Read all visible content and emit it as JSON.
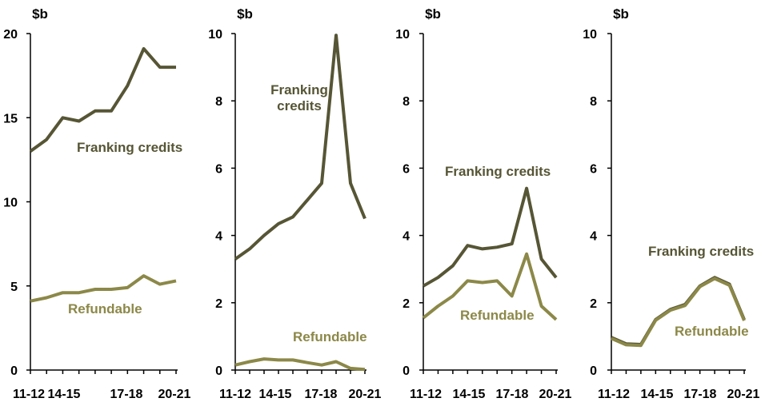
{
  "colors": {
    "franking": "#565535",
    "refundable": "#8c8848",
    "axis": "#000000"
  },
  "chart_data": [
    {
      "type": "line",
      "unit_label": "$b",
      "ylim": [
        0,
        20
      ],
      "yticks": [
        "0",
        "5",
        "10",
        "15",
        "20"
      ],
      "xticks": [
        "11-12",
        "14-15",
        "17-18",
        "20-21"
      ],
      "x": [
        "11-12",
        "12-13",
        "13-14",
        "14-15",
        "15-16",
        "16-17",
        "17-18",
        "18-19",
        "19-20",
        "20-21"
      ],
      "series": [
        {
          "name": "Franking credits",
          "color": "franking",
          "values": [
            13.0,
            13.7,
            15.0,
            14.8,
            15.4,
            15.4,
            16.9,
            19.1,
            18.0,
            18.0
          ]
        },
        {
          "name": "Refundable",
          "color": "refundable",
          "values": [
            4.1,
            4.3,
            4.6,
            4.6,
            4.8,
            4.8,
            4.9,
            5.6,
            5.1,
            5.3
          ]
        }
      ],
      "annotations": [
        "Franking credits",
        "Refundable"
      ]
    },
    {
      "type": "line",
      "unit_label": "$b",
      "ylim": [
        0,
        10
      ],
      "yticks": [
        "0",
        "2",
        "4",
        "6",
        "8",
        "10"
      ],
      "xticks": [
        "11-12",
        "14-15",
        "17-18",
        "20-21"
      ],
      "x": [
        "11-12",
        "12-13",
        "13-14",
        "14-15",
        "15-16",
        "16-17",
        "17-18",
        "18-19",
        "19-20",
        "20-21"
      ],
      "series": [
        {
          "name": "Franking credits",
          "color": "franking",
          "values": [
            3.3,
            3.6,
            4.0,
            4.35,
            4.55,
            5.05,
            5.55,
            9.95,
            5.55,
            4.5
          ]
        },
        {
          "name": "Refundable",
          "color": "refundable",
          "values": [
            0.15,
            0.25,
            0.33,
            0.3,
            0.3,
            0.22,
            0.15,
            0.25,
            0.05,
            0.02
          ]
        }
      ],
      "annotations": [
        "Franking\ncredits",
        "Refundable"
      ]
    },
    {
      "type": "line",
      "unit_label": "$b",
      "ylim": [
        0,
        10
      ],
      "yticks": [
        "0",
        "2",
        "4",
        "6",
        "8",
        "10"
      ],
      "xticks": [
        "11-12",
        "14-15",
        "17-18",
        "20-21"
      ],
      "x": [
        "11-12",
        "12-13",
        "13-14",
        "14-15",
        "15-16",
        "16-17",
        "17-18",
        "18-19",
        "19-20",
        "20-21"
      ],
      "series": [
        {
          "name": "Franking credits",
          "color": "franking",
          "values": [
            2.5,
            2.75,
            3.1,
            3.7,
            3.6,
            3.65,
            3.75,
            5.4,
            3.3,
            2.75
          ]
        },
        {
          "name": "Refundable",
          "color": "refundable",
          "values": [
            1.55,
            1.9,
            2.2,
            2.65,
            2.6,
            2.65,
            2.2,
            3.45,
            1.9,
            1.5
          ]
        }
      ],
      "annotations": [
        "Franking credits",
        "Refundable"
      ]
    },
    {
      "type": "line",
      "unit_label": "$b",
      "ylim": [
        0,
        10
      ],
      "yticks": [
        "0",
        "2",
        "4",
        "6",
        "8",
        "10"
      ],
      "xticks": [
        "11-12",
        "14-15",
        "17-18",
        "20-21"
      ],
      "x": [
        "11-12",
        "12-13",
        "13-14",
        "14-15",
        "15-16",
        "16-17",
        "17-18",
        "18-19",
        "19-20",
        "20-21"
      ],
      "series": [
        {
          "name": "Franking credits",
          "color": "franking",
          "values": [
            0.97,
            0.78,
            0.76,
            1.5,
            1.8,
            1.95,
            2.5,
            2.75,
            2.55,
            1.5
          ]
        },
        {
          "name": "Refundable",
          "color": "refundable",
          "values": [
            0.94,
            0.75,
            0.73,
            1.48,
            1.78,
            1.92,
            2.48,
            2.72,
            2.52,
            1.47
          ]
        }
      ],
      "annotations": [
        "Franking credits",
        "Refundable"
      ]
    }
  ]
}
